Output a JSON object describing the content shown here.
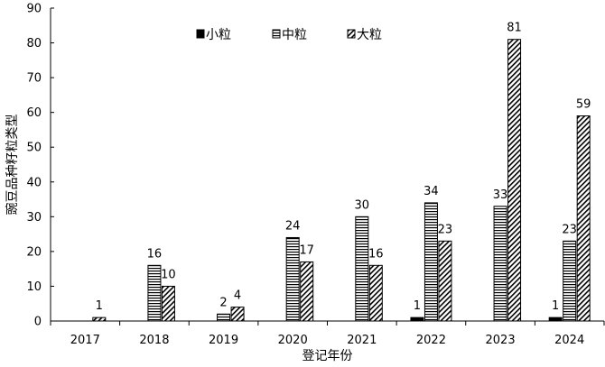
{
  "chart_data": {
    "type": "bar",
    "categories": [
      "2017",
      "2018",
      "2019",
      "2020",
      "2021",
      "2022",
      "2023",
      "2024"
    ],
    "series": [
      {
        "name": "小粒",
        "values": [
          0,
          0,
          0,
          0,
          0,
          1,
          0,
          1
        ],
        "labels": [
          "",
          "",
          "",
          "",
          "",
          "1",
          "",
          "1"
        ],
        "pattern": "solid"
      },
      {
        "name": "中粒",
        "values": [
          0,
          16,
          2,
          24,
          30,
          34,
          33,
          23
        ],
        "labels": [
          "",
          "16",
          "2",
          "24",
          "30",
          "34",
          "33",
          "23"
        ],
        "pattern": "horizontal"
      },
      {
        "name": "大粒",
        "values": [
          1,
          10,
          4,
          17,
          16,
          23,
          81,
          59
        ],
        "labels": [
          "1",
          "10",
          "4",
          "17",
          "16",
          "23",
          "81",
          "59"
        ],
        "pattern": "diagonal"
      }
    ],
    "xlabel": "登记年份",
    "ylabel": "豌豆品种籽粒类型",
    "ylim": [
      0,
      90
    ],
    "yticks": [
      0,
      10,
      20,
      30,
      40,
      50,
      60,
      70,
      80,
      90
    ],
    "grid": false,
    "legend_position": "top-center",
    "colors": {
      "bar_stroke": "#000000",
      "fill": "#000000",
      "background": "#ffffff"
    }
  }
}
